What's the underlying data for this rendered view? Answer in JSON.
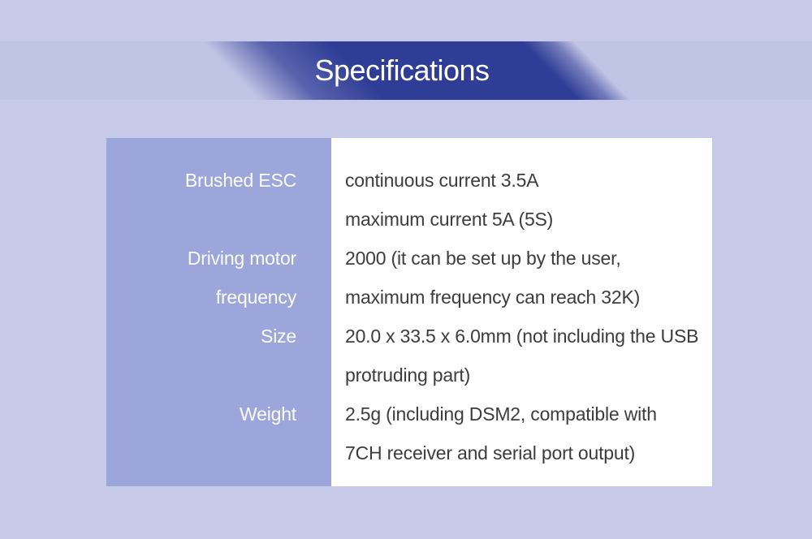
{
  "page": {
    "background_color": "#c6cae8"
  },
  "banner": {
    "title": "Specifications",
    "ribbon_color": "#2f3d96",
    "title_color": "#ffffff"
  },
  "spec_table": {
    "label_column_color": "#9da6da",
    "value_column_color": "#ffffff",
    "label_text_color": "#ffffff",
    "value_text_color": "#3c3c3c",
    "lines": [
      {
        "label": "Brushed ESC",
        "value": "continuous current 3.5A"
      },
      {
        "label": "",
        "value": "maximum current 5A (5S)"
      },
      {
        "label": "Driving motor",
        "value": "2000 (it can be set up by the user,"
      },
      {
        "label": "frequency",
        "value": "maximum frequency can reach 32K)"
      },
      {
        "label": "Size",
        "value": "20.0 x 33.5 x 6.0mm (not including the USB"
      },
      {
        "label": "",
        "value": "protruding part)"
      },
      {
        "label": "Weight",
        "value": "2.5g (including DSM2, compatible with"
      },
      {
        "label": "",
        "value": "7CH receiver and serial port output)"
      }
    ]
  }
}
